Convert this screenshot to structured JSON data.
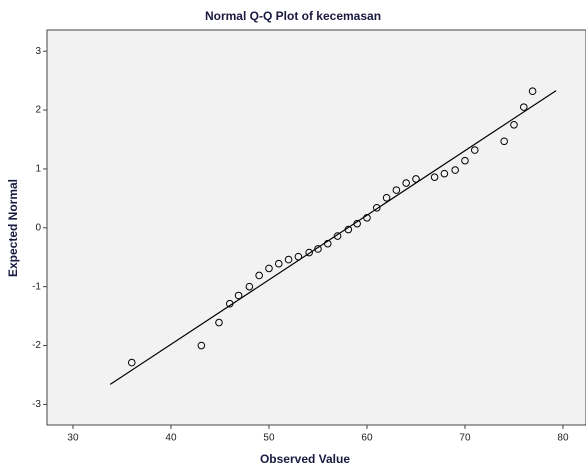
{
  "chart_data": {
    "type": "scatter",
    "title": "Normal Q-Q Plot of kecemasan",
    "x_label": "Observed Value",
    "y_label": "Expected Normal",
    "series": [
      {
        "color": "#000000",
        "x": [
          36.0,
          43.1,
          44.9,
          46.0,
          46.9,
          48.0,
          49.0,
          50.0,
          51.0,
          52.0,
          53.0,
          54.1,
          55.0,
          56.0,
          57.0,
          58.1,
          59.0,
          60.0,
          61.0,
          62.0,
          63.0,
          64.0,
          65.0,
          66.9,
          67.9,
          69.0,
          70.0,
          71.0,
          74.0,
          75.0,
          76.0,
          76.9
        ],
        "values": [
          -2.29,
          -2.0,
          -1.61,
          -1.29,
          -1.15,
          -1.0,
          -0.81,
          -0.69,
          -0.61,
          -0.54,
          -0.49,
          -0.42,
          -0.36,
          -0.27,
          -0.14,
          -0.03,
          0.07,
          0.17,
          0.34,
          0.51,
          0.64,
          0.76,
          0.83,
          0.86,
          0.92,
          0.98,
          1.14,
          1.32,
          1.47,
          1.75,
          2.05,
          2.32
        ]
      }
    ],
    "reference_line": {
      "x": [
        33.8,
        79.3
      ],
      "values": [
        -2.66,
        2.33
      ],
      "color": "#000000"
    },
    "xlim": [
      27.35,
      82.35
    ],
    "ylim": [
      -3.35,
      3.36
    ],
    "xticks": [
      30,
      40,
      50,
      60,
      70,
      80
    ],
    "yticks": [
      -3,
      -2,
      -1,
      0,
      1,
      2,
      3
    ]
  }
}
